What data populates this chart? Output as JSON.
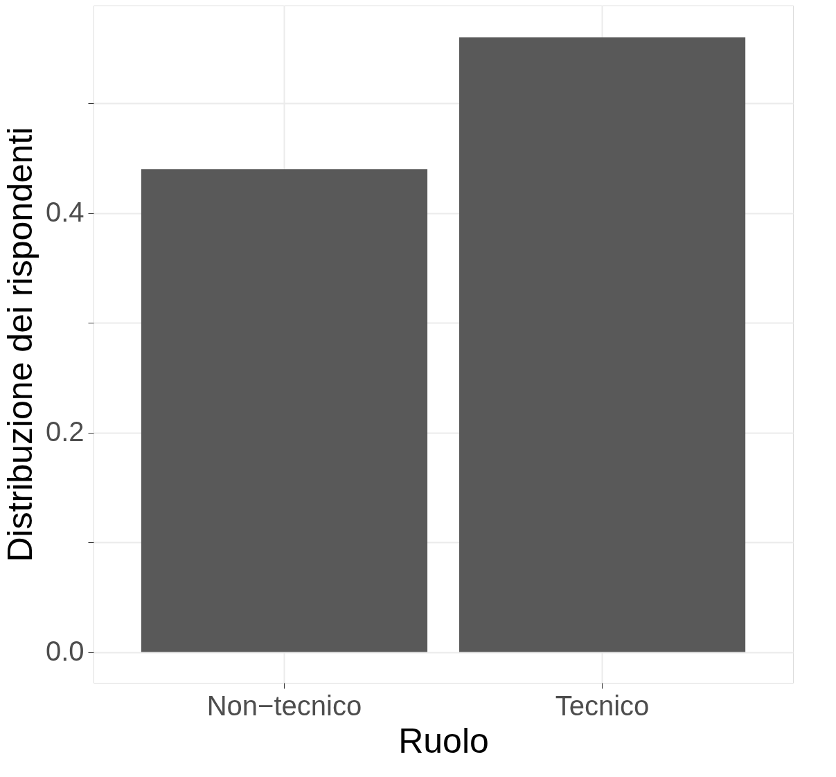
{
  "chart_data": {
    "type": "bar",
    "xlabel": "Ruolo",
    "ylabel": "Distribuzione dei rispondenti",
    "categories": [
      "Non−tecnico",
      "Tecnico"
    ],
    "values": [
      0.44,
      0.56
    ],
    "color": "#595959",
    "ylim": [
      -0.028,
      0.589
    ],
    "yticks": [
      {
        "value": 0,
        "label": "0.0"
      },
      {
        "value": 0.1,
        "label": null
      },
      {
        "value": 0.2,
        "label": "0.2"
      },
      {
        "value": 0.3,
        "label": null
      },
      {
        "value": 0.4,
        "label": "0.4"
      },
      {
        "value": 0.5,
        "label": null
      }
    ],
    "grid": true
  }
}
